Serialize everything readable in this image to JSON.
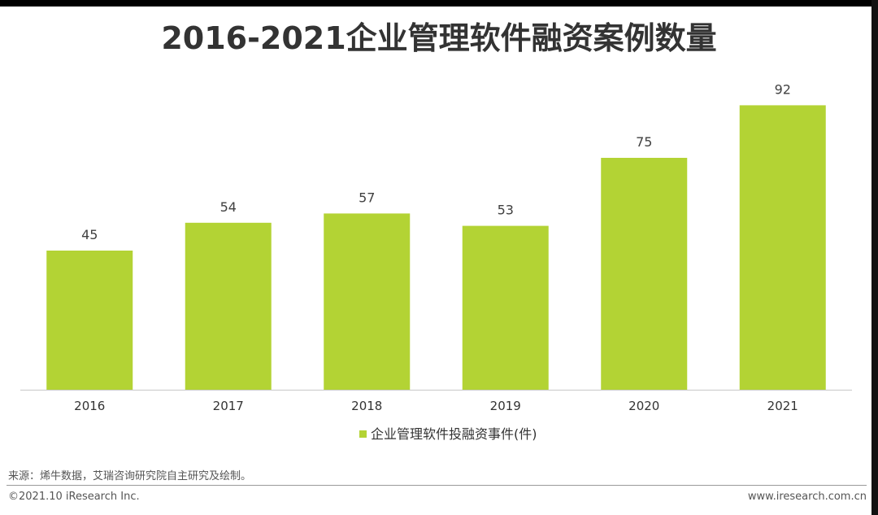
{
  "title": "2016-2021企业管理软件融资案例数量",
  "chart_data": {
    "type": "bar",
    "title": "2016-2021企业管理软件融资案例数量",
    "categories": [
      "2016",
      "2017",
      "2018",
      "2019",
      "2020",
      "2021"
    ],
    "series": [
      {
        "name": "企业管理软件投融资事件(件)",
        "values": [
          45,
          54,
          57,
          53,
          75,
          92
        ],
        "color": "#B3D334"
      }
    ],
    "ylim": [
      0,
      100
    ],
    "grid": false,
    "legend": "bottom-center",
    "data_labels": true
  },
  "footer": {
    "source": "来源：烯牛数据，艾瑞咨询研究院自主研究及绘制。",
    "copyright": "©2021.10 iResearch Inc.",
    "website": "www.iresearch.com.cn"
  }
}
